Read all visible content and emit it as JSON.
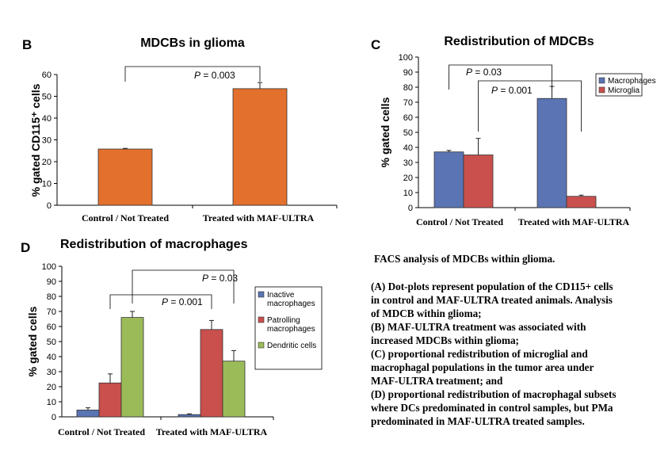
{
  "chart_data": [
    {
      "type": "bar",
      "panel": "B",
      "title": "MDCBs in glioma",
      "ylabel": "% gated CD115⁺ cells",
      "ylim": [
        0,
        60
      ],
      "yticks": [
        0,
        10,
        20,
        30,
        40,
        50,
        60
      ],
      "categories": [
        "Control / Not Treated",
        "Treated with MAF-ULTRA"
      ],
      "series": [
        {
          "values": [
            25.8,
            53.5
          ],
          "errors": [
            0.3,
            2.8
          ],
          "color": "#e3702d"
        }
      ],
      "annotations": [
        {
          "text": "P = 0.003",
          "between": [
            0,
            1
          ]
        }
      ],
      "legend": null
    },
    {
      "type": "bar",
      "panel": "C",
      "title": "Redistribution of MDCBs",
      "ylabel": "% gated cells",
      "ylim": [
        0,
        100
      ],
      "yticks": [
        0,
        10,
        20,
        30,
        40,
        50,
        60,
        70,
        80,
        90,
        100
      ],
      "categories": [
        "Control / Not Treated",
        "Treated with MAF-ULTRA"
      ],
      "series": [
        {
          "name": "Macrophages",
          "values": [
            37,
            72.5
          ],
          "errors": [
            1,
            8
          ],
          "color": "#5b74b3"
        },
        {
          "name": "Microglia",
          "values": [
            35,
            7.5
          ],
          "errors": [
            11,
            0.8
          ],
          "color": "#c9504d"
        }
      ],
      "annotations": [
        {
          "text": "P = 0.03",
          "from": "Control / Macrophages",
          "to": "Treated / Macrophages"
        },
        {
          "text": "P = 0.001",
          "from": "Control / Microglia",
          "to": "Treated / Microglia"
        }
      ],
      "legend": "top-right"
    },
    {
      "type": "bar",
      "panel": "D",
      "title": "Redistribution of macrophages",
      "ylabel": "% gated cells",
      "ylim": [
        0,
        100
      ],
      "yticks": [
        0,
        10,
        20,
        30,
        40,
        50,
        60,
        70,
        80,
        90,
        100
      ],
      "categories": [
        "Control / Not Treated",
        "Treated with MAF-ULTRA"
      ],
      "series": [
        {
          "name": "Inactive macrophages",
          "legend_lines": [
            "Inactive",
            "macrophages"
          ],
          "values": [
            4.5,
            1.5
          ],
          "errors": [
            1.5,
            0.5
          ],
          "color": "#5b74b3"
        },
        {
          "name": "Patrolling macrophages",
          "legend_lines": [
            "Patrolling",
            "macrophages"
          ],
          "values": [
            22.5,
            58
          ],
          "errors": [
            6,
            6
          ],
          "color": "#c9504d"
        },
        {
          "name": "Dendritic cells",
          "legend_lines": [
            "Dendritic cells"
          ],
          "values": [
            66,
            37
          ],
          "errors": [
            4,
            7
          ],
          "color": "#9bbb59"
        }
      ],
      "annotations": [
        {
          "text": "P = 0.03",
          "from": "Control / Dendritic cells",
          "to": "Treated / Dendritic cells"
        },
        {
          "text": "P = 0.001",
          "from": "Control / Patrolling macrophages",
          "to": "Treated / Patrolling macrophages"
        }
      ],
      "legend": "right"
    }
  ],
  "caption": {
    "heading": "FACS analysis of MDCBs within glioma.",
    "lines": [
      "(A) Dot-plots represent population of the CD115+ cells",
      "in control and MAF-ULTRA treated animals. Analysis",
      "of MDCB within glioma;",
      "(B) MAF-ULTRA treatment was associated with",
      "increased MDCBs within glioma;",
      "(C) proportional redistribution of microglial and",
      "macrophagal populations in the tumor area under",
      "MAF-ULTRA  treatment; and",
      "(D) proportional redistribution of macrophagal subsets",
      "where DCs predominated in control samples, but PMa",
      "predominated in MAF-ULTRA treated samples."
    ]
  }
}
